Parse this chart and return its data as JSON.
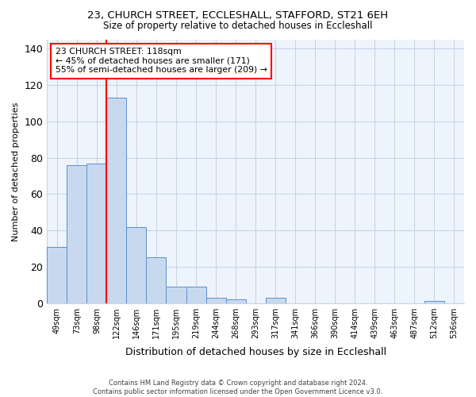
{
  "title1": "23, CHURCH STREET, ECCLESHALL, STAFFORD, ST21 6EH",
  "title2": "Size of property relative to detached houses in Eccleshall",
  "xlabel": "Distribution of detached houses by size in Eccleshall",
  "ylabel": "Number of detached properties",
  "bin_labels": [
    "49sqm",
    "73sqm",
    "98sqm",
    "122sqm",
    "146sqm",
    "171sqm",
    "195sqm",
    "219sqm",
    "244sqm",
    "268sqm",
    "293sqm",
    "317sqm",
    "341sqm",
    "366sqm",
    "390sqm",
    "414sqm",
    "439sqm",
    "463sqm",
    "487sqm",
    "512sqm",
    "536sqm"
  ],
  "bar_values": [
    31,
    76,
    77,
    113,
    42,
    25,
    9,
    9,
    3,
    2,
    0,
    3,
    0,
    0,
    0,
    0,
    0,
    0,
    0,
    1,
    0
  ],
  "bar_color": "#c8d9ef",
  "bar_edgecolor": "#5b8fcc",
  "bg_color": "#eef4fc",
  "fig_bg_color": "#ffffff",
  "grid_color": "#c8d4e8",
  "annotation_text": "23 CHURCH STREET: 118sqm\n← 45% of detached houses are smaller (171)\n55% of semi-detached houses are larger (209) →",
  "annotation_box_color": "white",
  "annotation_box_edgecolor": "red",
  "vline_color": "red",
  "ylim": [
    0,
    145
  ],
  "footnote": "Contains HM Land Registry data © Crown copyright and database right 2024.\nContains public sector information licensed under the Open Government Licence v3.0."
}
